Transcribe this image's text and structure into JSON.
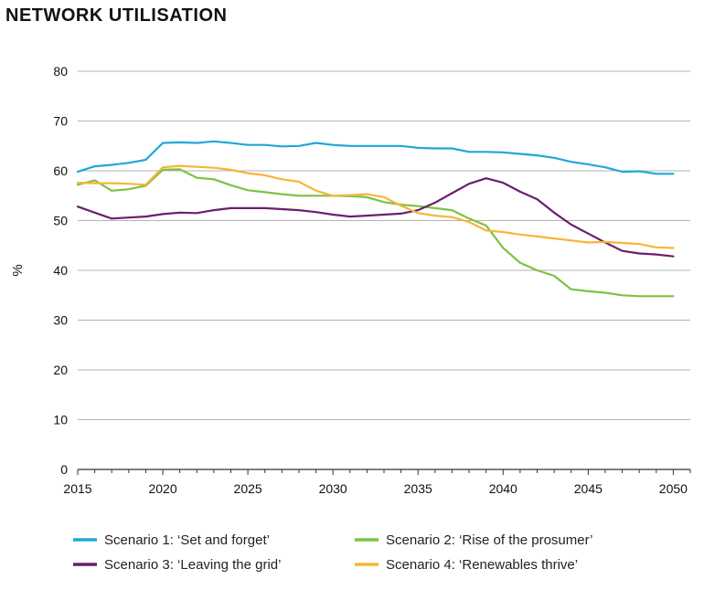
{
  "chart_data": {
    "type": "line",
    "title": "NETWORK UTILISATION",
    "xlabel": "",
    "ylabel": "%",
    "xlim": [
      2015,
      2051
    ],
    "ylim": [
      0,
      80
    ],
    "x_ticks": [
      2015,
      2020,
      2025,
      2030,
      2035,
      2040,
      2045,
      2050
    ],
    "y_ticks": [
      0,
      10,
      20,
      30,
      40,
      50,
      60,
      70,
      80
    ],
    "grid": "horizontal",
    "legend_position": "bottom",
    "x": [
      2015,
      2016,
      2017,
      2018,
      2019,
      2020,
      2021,
      2022,
      2023,
      2024,
      2025,
      2026,
      2027,
      2028,
      2029,
      2030,
      2031,
      2032,
      2033,
      2034,
      2035,
      2036,
      2037,
      2038,
      2039,
      2040,
      2041,
      2042,
      2043,
      2044,
      2045,
      2046,
      2047,
      2048,
      2049,
      2050
    ],
    "series": [
      {
        "name": "Scenario 1: ‘Set and forget’",
        "color": "#1FA8D6",
        "values": [
          59.8,
          60.9,
          61.2,
          61.6,
          62.2,
          65.6,
          65.7,
          65.6,
          65.9,
          65.6,
          65.2,
          65.2,
          64.9,
          65.0,
          65.6,
          65.2,
          65.0,
          65.0,
          65.0,
          65.0,
          64.6,
          64.5,
          64.5,
          63.8,
          63.8,
          63.7,
          63.4,
          63.1,
          62.6,
          61.8,
          61.3,
          60.7,
          59.8,
          59.9,
          59.4,
          59.4
        ]
      },
      {
        "name": "Scenario 2: ‘Rise of the prosumer’",
        "color": "#7CC242",
        "values": [
          57.2,
          58.1,
          56.0,
          56.3,
          57.0,
          60.2,
          60.3,
          58.6,
          58.3,
          57.1,
          56.1,
          55.7,
          55.3,
          55.0,
          55.0,
          55.0,
          54.9,
          54.7,
          53.7,
          53.2,
          52.9,
          52.5,
          52.1,
          50.4,
          49.0,
          44.5,
          41.5,
          40.0,
          38.9,
          36.2,
          35.8,
          35.5,
          35.0,
          34.8,
          34.8,
          34.8
        ]
      },
      {
        "name": "Scenario 3: ‘Leaving the grid’",
        "color": "#6B1E6E",
        "values": [
          52.8,
          51.6,
          50.4,
          50.6,
          50.8,
          51.3,
          51.6,
          51.5,
          52.1,
          52.5,
          52.5,
          52.5,
          52.3,
          52.1,
          51.7,
          51.2,
          50.8,
          51.0,
          51.2,
          51.4,
          52.1,
          53.6,
          55.5,
          57.4,
          58.5,
          57.6,
          55.8,
          54.3,
          51.6,
          49.2,
          47.4,
          45.6,
          43.9,
          43.4,
          43.2,
          42.8
        ]
      },
      {
        "name": "Scenario 4: ‘Renewables thrive’",
        "color": "#F7B538",
        "values": [
          57.6,
          57.5,
          57.5,
          57.4,
          57.2,
          60.7,
          61.0,
          60.8,
          60.6,
          60.2,
          59.5,
          59.1,
          58.3,
          57.8,
          56.0,
          55.0,
          55.1,
          55.3,
          54.7,
          53.0,
          51.5,
          51.0,
          50.7,
          49.7,
          48.0,
          47.7,
          47.2,
          46.8,
          46.4,
          46.0,
          45.6,
          45.7,
          45.5,
          45.3,
          44.6,
          44.5
        ]
      }
    ]
  }
}
